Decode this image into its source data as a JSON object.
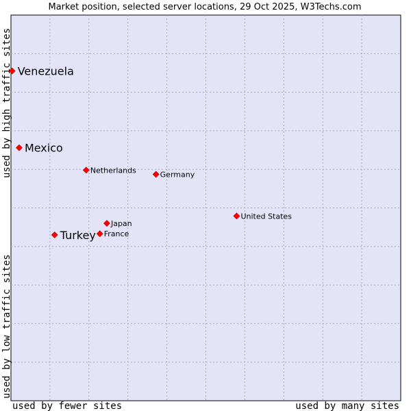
{
  "chart_data": {
    "type": "scatter",
    "title": "Market position, selected server locations, 29 Oct 2025, W3Techs.com",
    "xlabel_left": "used by fewer sites",
    "xlabel_right": "used by many sites",
    "ylabel_bottom": "used by low traffic sites",
    "ylabel_top": "used by high traffic sites",
    "xlim": [
      0,
      100
    ],
    "ylim": [
      0,
      100
    ],
    "grid": true,
    "colors": {
      "plot_bg": "#e4e4f8",
      "grid": "#a6a6c4",
      "marker": "#ff0000"
    },
    "points": [
      {
        "label": "Venezuela",
        "x": 0.3,
        "y": 85.5,
        "emphasis": true
      },
      {
        "label": "Mexico",
        "x": 2.1,
        "y": 65.6,
        "emphasis": true
      },
      {
        "label": "Netherlands",
        "x": 19.3,
        "y": 59.8,
        "emphasis": false
      },
      {
        "label": "Germany",
        "x": 37.2,
        "y": 58.7,
        "emphasis": false
      },
      {
        "label": "United States",
        "x": 57.9,
        "y": 47.9,
        "emphasis": false
      },
      {
        "label": "Japan",
        "x": 24.6,
        "y": 46.0,
        "emphasis": false
      },
      {
        "label": "France",
        "x": 22.8,
        "y": 43.3,
        "emphasis": false
      },
      {
        "label": "Turkey",
        "x": 11.2,
        "y": 43.0,
        "emphasis": true
      }
    ]
  }
}
